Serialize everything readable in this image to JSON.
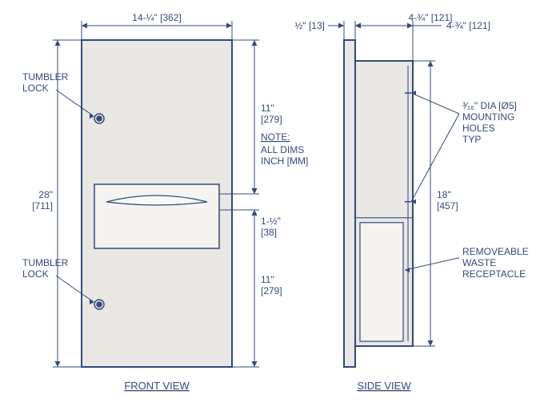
{
  "colors": {
    "stroke": "#334a7a",
    "text": "#334a7a",
    "bg": "#e8e7e3",
    "paper": "#ffffff"
  },
  "lineWidths": {
    "outline": 2,
    "dim": 1
  },
  "front": {
    "title": "FRONT VIEW",
    "lock_label": "TUMBLER\nLOCK",
    "dims": {
      "width": "14-¼\" [362]",
      "height": "28\"\n[711]",
      "upper": "11\"\n[279]",
      "lower": "11\"\n[279]",
      "slot": "1-½\"\n[38]"
    }
  },
  "side": {
    "title": "SIDE VIEW",
    "flange": "½\"  [13]",
    "depth": "4-¾\" [121]",
    "inner_height": "18\"\n[457]",
    "mounting": "³⁄₁₆\" DIA [Ø5]\nMOUNTING\nHOLES\nTYP",
    "receptacle": "REMOVEABLE\nWASTE\nRECEPTACLE"
  },
  "note": {
    "heading": "NOTE",
    "body": "ALL DIMS\nINCH [MM]"
  }
}
